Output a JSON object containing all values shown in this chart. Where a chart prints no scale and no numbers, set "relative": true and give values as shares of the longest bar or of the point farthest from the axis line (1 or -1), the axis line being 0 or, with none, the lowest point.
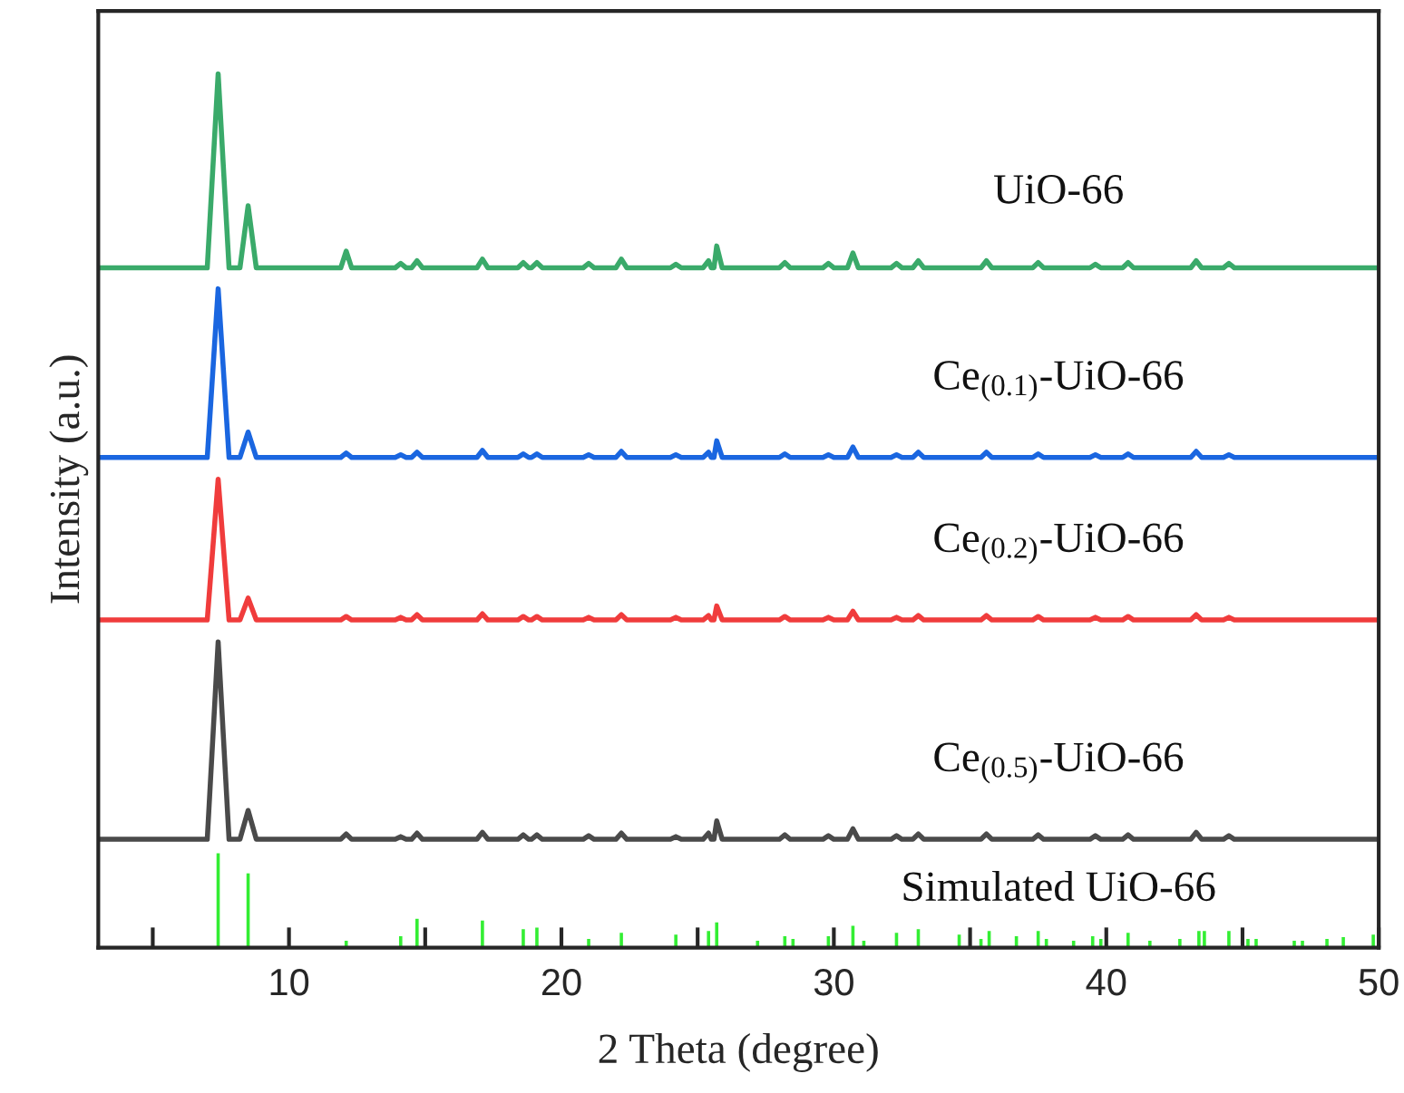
{
  "chart_data": {
    "type": "line",
    "relative": true,
    "xlabel": "2 Theta (degree)",
    "ylabel": "Intensity (a.u.)",
    "xlim": [
      3,
      50
    ],
    "xticks": [
      {
        "value": 5,
        "label": null
      },
      10,
      {
        "value": 15,
        "label": null
      },
      20,
      {
        "value": 25,
        "label": null
      },
      30,
      {
        "value": 35,
        "label": null
      },
      40,
      {
        "value": 45,
        "label": null
      },
      50
    ],
    "series": [
      {
        "name": "UiO-66",
        "color": "#3aaa6a",
        "x": [
          3,
          7.0,
          7.4,
          7.8,
          8.2,
          8.5,
          8.8,
          11.9,
          12.1,
          12.3,
          13.9,
          14.1,
          14.3,
          14.5,
          14.7,
          14.9,
          16.9,
          17.1,
          17.3,
          18.4,
          18.6,
          18.8,
          18.9,
          19.1,
          19.3,
          20.8,
          21.0,
          21.2,
          22.0,
          22.2,
          22.4,
          24.0,
          24.2,
          24.4,
          25.2,
          25.4,
          25.5,
          25.6,
          25.7,
          25.9,
          28.0,
          28.2,
          28.4,
          29.6,
          29.8,
          30.0,
          30.5,
          30.7,
          30.9,
          32.1,
          32.3,
          32.5,
          32.9,
          33.1,
          33.3,
          35.4,
          35.6,
          35.8,
          37.3,
          37.5,
          37.7,
          39.4,
          39.6,
          39.8,
          40.6,
          40.8,
          41.0,
          43.1,
          43.3,
          43.5,
          44.3,
          44.5,
          44.7,
          50
        ],
        "values": [
          0.778,
          0.778,
          1.0,
          0.778,
          0.778,
          0.849,
          0.778,
          0.778,
          0.797,
          0.778,
          0.778,
          0.783,
          0.778,
          0.778,
          0.786,
          0.778,
          0.778,
          0.788,
          0.778,
          0.778,
          0.784,
          0.778,
          0.778,
          0.784,
          0.778,
          0.778,
          0.783,
          0.778,
          0.778,
          0.788,
          0.778,
          0.778,
          0.782,
          0.778,
          0.778,
          0.786,
          0.778,
          0.778,
          0.803,
          0.778,
          0.778,
          0.784,
          0.778,
          0.778,
          0.783,
          0.778,
          0.778,
          0.795,
          0.778,
          0.778,
          0.783,
          0.778,
          0.778,
          0.786,
          0.778,
          0.778,
          0.786,
          0.778,
          0.778,
          0.784,
          0.778,
          0.778,
          0.782,
          0.778,
          0.778,
          0.784,
          0.778,
          0.778,
          0.786,
          0.778,
          0.778,
          0.783,
          0.778,
          0.778
        ]
      },
      {
        "name": "Ce$_{(0.1)}$-UiO-66",
        "color": "#1a66e0",
        "x": [
          3,
          7.0,
          7.4,
          7.8,
          8.2,
          8.5,
          8.8,
          11.9,
          12.1,
          12.3,
          13.9,
          14.1,
          14.3,
          14.5,
          14.7,
          14.9,
          16.9,
          17.1,
          17.3,
          18.4,
          18.6,
          18.8,
          18.9,
          19.1,
          19.3,
          20.8,
          21.0,
          21.2,
          22.0,
          22.2,
          22.4,
          24.0,
          24.2,
          24.4,
          25.2,
          25.4,
          25.5,
          25.6,
          25.7,
          25.9,
          28.0,
          28.2,
          28.4,
          29.6,
          29.8,
          30.0,
          30.5,
          30.7,
          30.9,
          32.1,
          32.3,
          32.5,
          32.9,
          33.1,
          33.3,
          35.4,
          35.6,
          35.8,
          37.3,
          37.5,
          37.7,
          39.4,
          39.6,
          39.8,
          40.6,
          40.8,
          41.0,
          43.1,
          43.3,
          43.5,
          44.3,
          44.5,
          44.7,
          50
        ],
        "values": [
          0.561,
          0.561,
          0.754,
          0.561,
          0.561,
          0.59,
          0.561,
          0.561,
          0.566,
          0.561,
          0.561,
          0.564,
          0.561,
          0.561,
          0.567,
          0.561,
          0.561,
          0.569,
          0.561,
          0.561,
          0.565,
          0.561,
          0.561,
          0.565,
          0.561,
          0.561,
          0.564,
          0.561,
          0.561,
          0.568,
          0.561,
          0.561,
          0.564,
          0.561,
          0.561,
          0.567,
          0.561,
          0.561,
          0.58,
          0.561,
          0.561,
          0.565,
          0.561,
          0.561,
          0.564,
          0.561,
          0.561,
          0.573,
          0.561,
          0.561,
          0.564,
          0.561,
          0.561,
          0.567,
          0.561,
          0.561,
          0.567,
          0.561,
          0.561,
          0.565,
          0.561,
          0.561,
          0.564,
          0.561,
          0.561,
          0.565,
          0.561,
          0.561,
          0.568,
          0.561,
          0.561,
          0.564,
          0.561,
          0.561
        ]
      },
      {
        "name": "Ce$_{(0.2)}$-UiO-66",
        "color": "#f03c3c",
        "x": [
          3,
          7.0,
          7.4,
          7.8,
          8.2,
          8.5,
          8.8,
          11.9,
          12.1,
          12.3,
          13.9,
          14.1,
          14.3,
          14.5,
          14.7,
          14.9,
          16.9,
          17.1,
          17.3,
          18.4,
          18.6,
          18.8,
          18.9,
          19.1,
          19.3,
          20.8,
          21.0,
          21.2,
          22.0,
          22.2,
          22.4,
          24.0,
          24.2,
          24.4,
          25.2,
          25.4,
          25.5,
          25.6,
          25.7,
          25.9,
          28.0,
          28.2,
          28.4,
          29.6,
          29.8,
          30.0,
          30.5,
          30.7,
          30.9,
          32.1,
          32.3,
          32.5,
          32.9,
          33.1,
          33.3,
          35.4,
          35.6,
          35.8,
          37.3,
          37.5,
          37.7,
          39.4,
          39.6,
          39.8,
          40.6,
          40.8,
          41.0,
          43.1,
          43.3,
          43.5,
          44.3,
          44.5,
          44.7,
          50
        ],
        "values": [
          0.375,
          0.375,
          0.536,
          0.375,
          0.375,
          0.4,
          0.375,
          0.375,
          0.379,
          0.375,
          0.375,
          0.378,
          0.375,
          0.375,
          0.381,
          0.375,
          0.375,
          0.382,
          0.375,
          0.375,
          0.379,
          0.375,
          0.375,
          0.379,
          0.375,
          0.375,
          0.378,
          0.375,
          0.375,
          0.381,
          0.375,
          0.375,
          0.378,
          0.375,
          0.375,
          0.38,
          0.375,
          0.375,
          0.391,
          0.375,
          0.375,
          0.379,
          0.375,
          0.375,
          0.378,
          0.375,
          0.375,
          0.385,
          0.375,
          0.375,
          0.378,
          0.375,
          0.375,
          0.38,
          0.375,
          0.375,
          0.38,
          0.375,
          0.375,
          0.379,
          0.375,
          0.375,
          0.378,
          0.375,
          0.375,
          0.379,
          0.375,
          0.375,
          0.381,
          0.375,
          0.375,
          0.378,
          0.375,
          0.375
        ]
      },
      {
        "name": "Ce$_{(0.5)}$-UiO-66",
        "color": "#4a4a4a",
        "x": [
          3,
          7.0,
          7.4,
          7.8,
          8.2,
          8.5,
          8.8,
          11.9,
          12.1,
          12.3,
          13.9,
          14.1,
          14.3,
          14.5,
          14.7,
          14.9,
          16.9,
          17.1,
          17.3,
          18.4,
          18.6,
          18.8,
          18.9,
          19.1,
          19.3,
          20.8,
          21.0,
          21.2,
          22.0,
          22.2,
          22.4,
          24.0,
          24.2,
          24.4,
          25.2,
          25.4,
          25.5,
          25.6,
          25.7,
          25.9,
          28.0,
          28.2,
          28.4,
          29.6,
          29.8,
          30.0,
          30.5,
          30.7,
          30.9,
          32.1,
          32.3,
          32.5,
          32.9,
          33.1,
          33.3,
          35.4,
          35.6,
          35.8,
          37.3,
          37.5,
          37.7,
          39.4,
          39.6,
          39.8,
          40.6,
          40.8,
          41.0,
          43.1,
          43.3,
          43.5,
          44.3,
          44.5,
          44.7,
          50
        ],
        "values": [
          0.124,
          0.124,
          0.35,
          0.124,
          0.124,
          0.157,
          0.124,
          0.124,
          0.13,
          0.124,
          0.124,
          0.127,
          0.124,
          0.124,
          0.131,
          0.124,
          0.124,
          0.132,
          0.124,
          0.124,
          0.129,
          0.124,
          0.124,
          0.129,
          0.124,
          0.124,
          0.128,
          0.124,
          0.124,
          0.131,
          0.124,
          0.124,
          0.127,
          0.124,
          0.124,
          0.131,
          0.124,
          0.124,
          0.145,
          0.124,
          0.124,
          0.129,
          0.124,
          0.124,
          0.128,
          0.124,
          0.124,
          0.136,
          0.124,
          0.124,
          0.128,
          0.124,
          0.124,
          0.13,
          0.124,
          0.124,
          0.13,
          0.124,
          0.124,
          0.129,
          0.124,
          0.124,
          0.128,
          0.124,
          0.124,
          0.129,
          0.124,
          0.124,
          0.132,
          0.124,
          0.124,
          0.128,
          0.124,
          0.124
        ]
      },
      {
        "name": "Simulated UiO-66",
        "type": "bar",
        "color": "#33ee33",
        "x": [
          7.4,
          8.5,
          12.1,
          14.1,
          14.7,
          17.1,
          18.6,
          19.1,
          21.0,
          22.2,
          24.2,
          25.4,
          25.7,
          27.2,
          28.2,
          28.5,
          29.8,
          30.7,
          31.1,
          32.3,
          33.1,
          34.6,
          35.4,
          35.7,
          36.7,
          37.5,
          37.8,
          38.8,
          39.5,
          39.8,
          40.8,
          41.6,
          42.7,
          43.4,
          43.6,
          44.5,
          45.2,
          45.5,
          46.9,
          47.2,
          48.1,
          48.7,
          49.8
        ],
        "values": [
          0.108,
          0.085,
          0.008,
          0.013,
          0.033,
          0.031,
          0.021,
          0.023,
          0.01,
          0.017,
          0.015,
          0.019,
          0.029,
          0.008,
          0.013,
          0.01,
          0.013,
          0.025,
          0.008,
          0.017,
          0.021,
          0.015,
          0.01,
          0.019,
          0.013,
          0.019,
          0.01,
          0.008,
          0.013,
          0.01,
          0.017,
          0.008,
          0.01,
          0.019,
          0.019,
          0.019,
          0.01,
          0.01,
          0.008,
          0.008,
          0.01,
          0.012,
          0.015
        ]
      }
    ]
  }
}
